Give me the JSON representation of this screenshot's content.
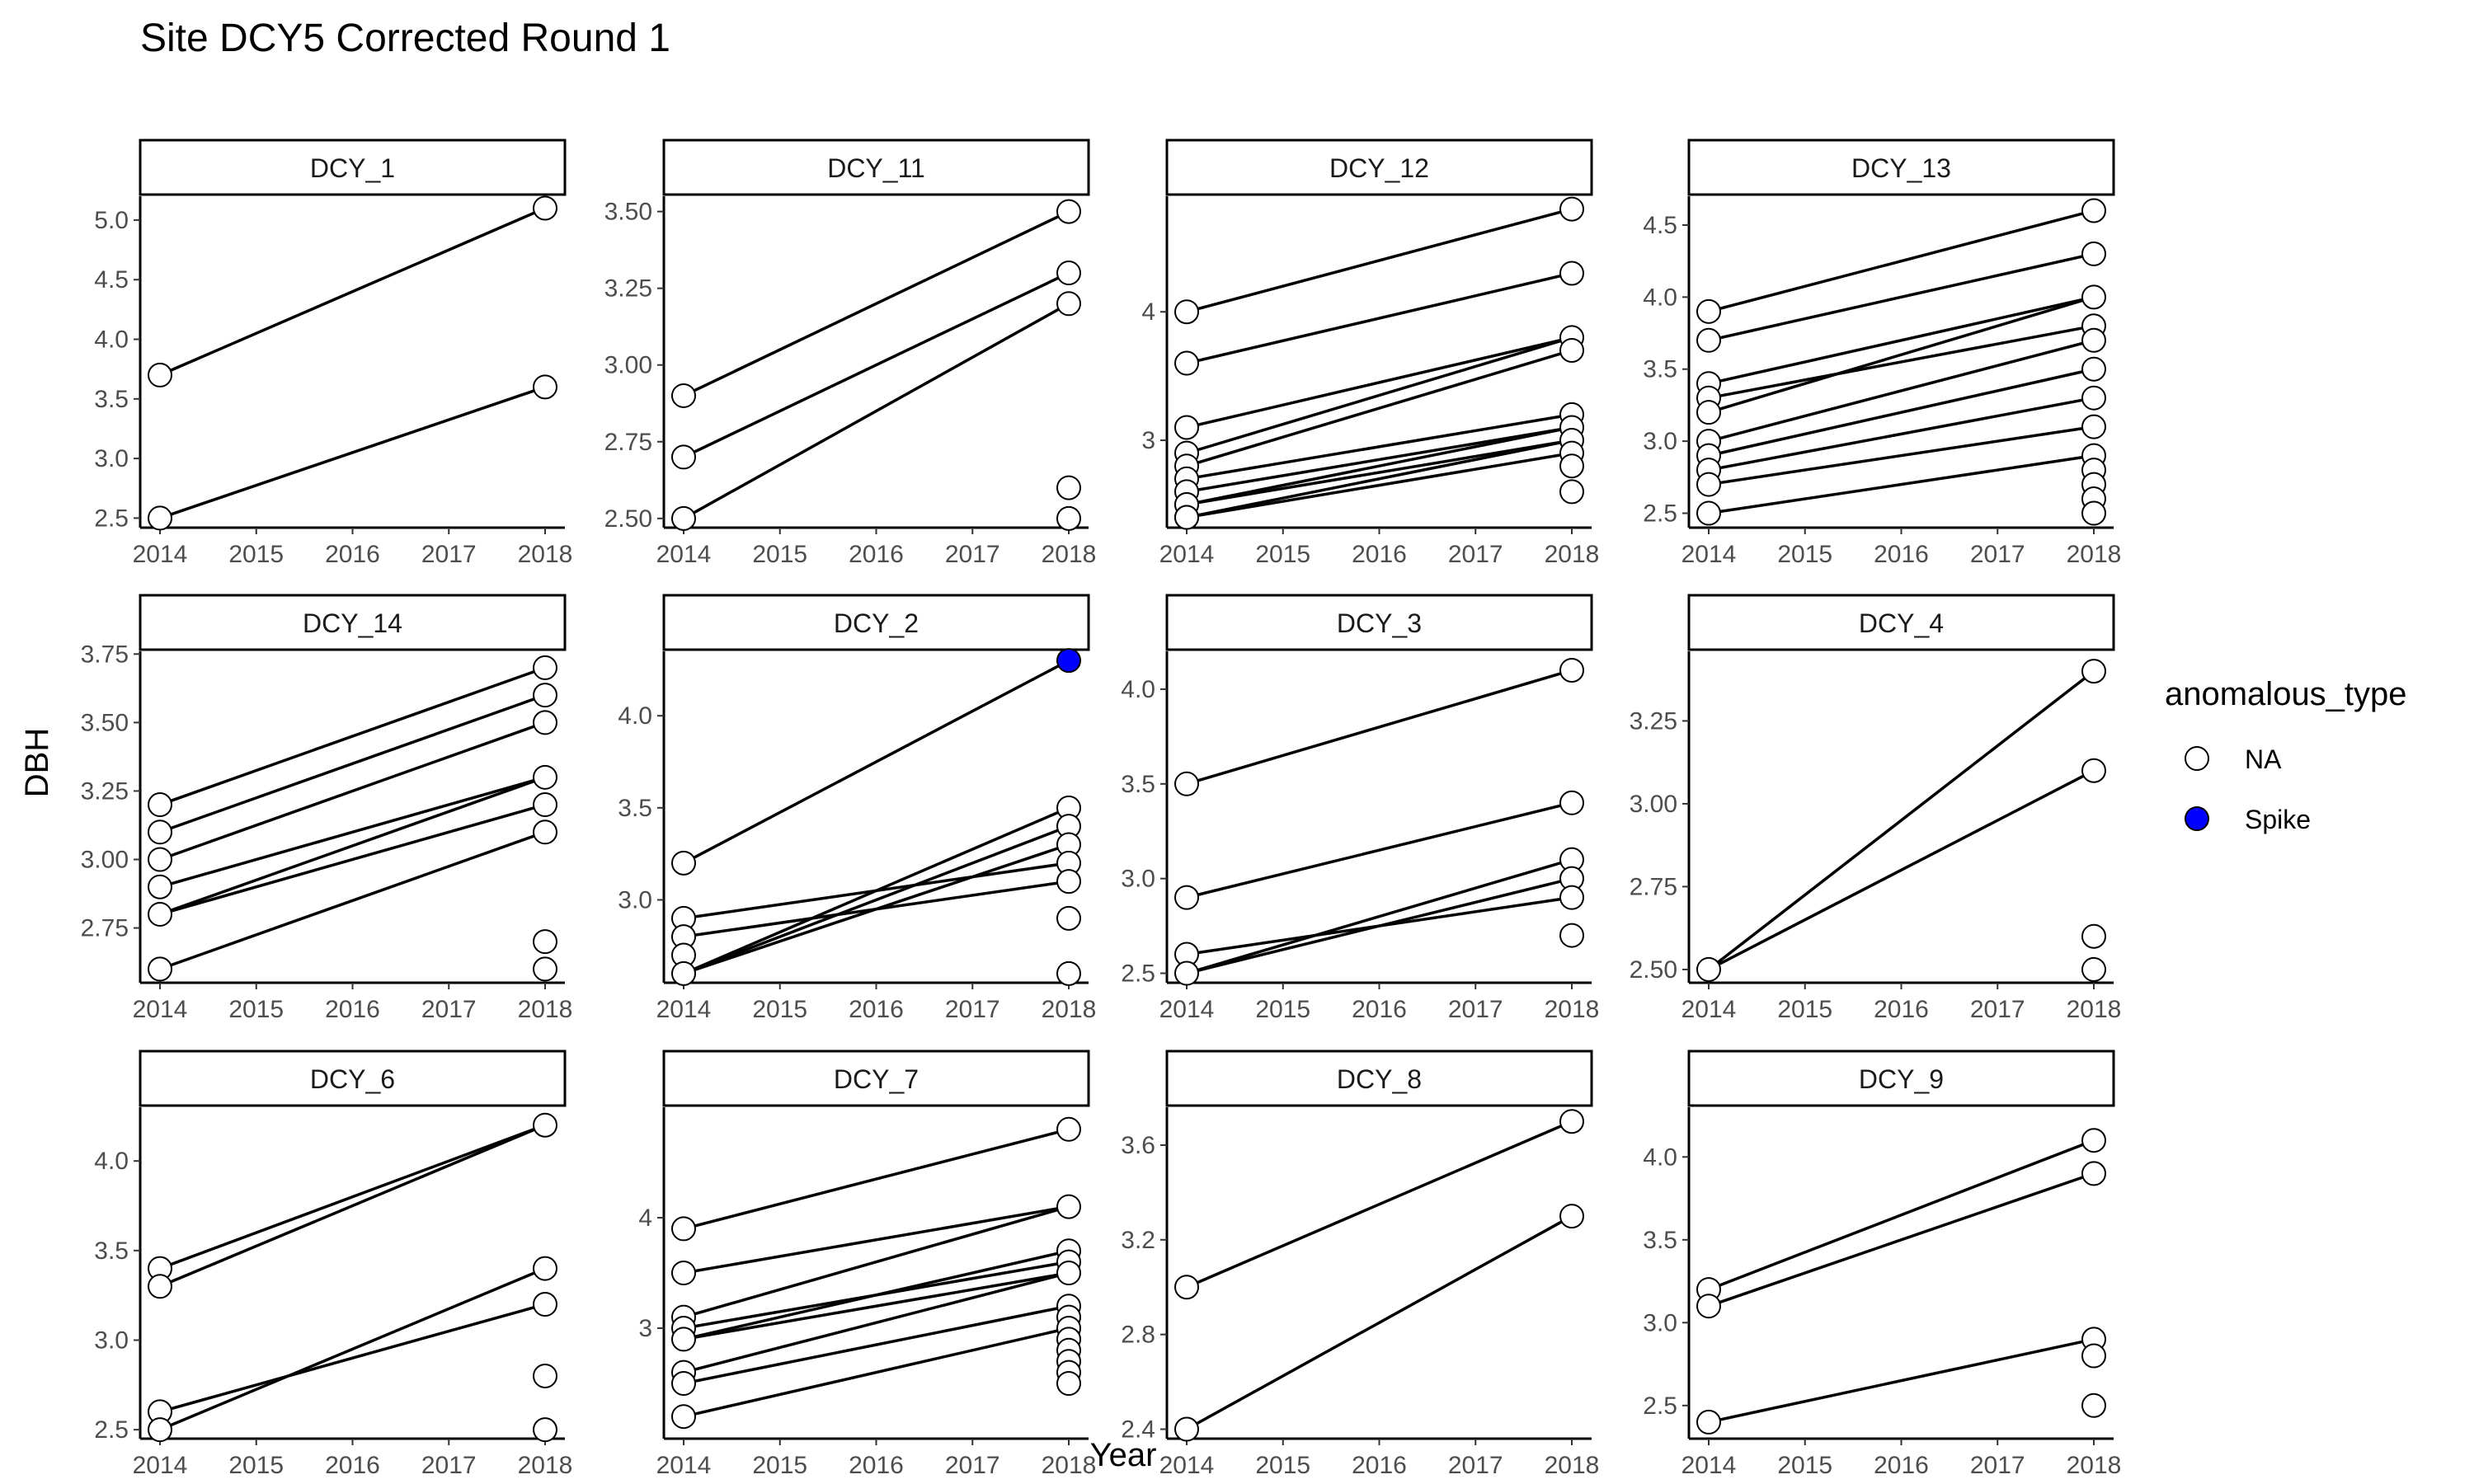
{
  "chart_data": {
    "type": "scatter",
    "title": "Site DCY5 Corrected Round 1",
    "xlabel": "Year",
    "ylabel": "DBH",
    "x_ticks": [
      2014,
      2015,
      2016,
      2017,
      2018
    ],
    "grid": false,
    "legend": {
      "title": "anomalous_type",
      "placement": "right",
      "entries": [
        {
          "label": "NA",
          "fill": "#ffffff"
        },
        {
          "label": "Spike",
          "fill": "#0000ff"
        }
      ]
    },
    "facets": [
      {
        "name": "DCY_1",
        "ylim": [
          2.42,
          5.2
        ],
        "y_ticks": [
          "2.5",
          "3.0",
          "3.5",
          "4.0",
          "4.5",
          "5.0"
        ],
        "lines": [
          [
            3.7,
            5.1
          ],
          [
            2.5,
            3.6
          ]
        ],
        "points_2014": [
          3.7,
          2.5
        ],
        "points_2018": [
          5.1,
          3.6
        ],
        "spike_2018": []
      },
      {
        "name": "DCY_11",
        "ylim": [
          2.47,
          3.55
        ],
        "y_ticks": [
          "2.50",
          "2.75",
          "3.00",
          "3.25",
          "3.50"
        ],
        "lines": [
          [
            2.9,
            3.5
          ],
          [
            2.7,
            3.3
          ],
          [
            2.5,
            3.2
          ]
        ],
        "points_2014": [
          2.9,
          2.7,
          2.5
        ],
        "points_2018": [
          3.5,
          3.3,
          3.2,
          2.6,
          2.5
        ],
        "spike_2018": []
      },
      {
        "name": "DCY_12",
        "ylim": [
          2.32,
          4.9
        ],
        "y_ticks": [
          "3",
          "4"
        ],
        "lines": [
          [
            4.0,
            4.8
          ],
          [
            3.6,
            4.3
          ],
          [
            3.1,
            3.8
          ],
          [
            2.9,
            3.8
          ],
          [
            2.8,
            3.7
          ],
          [
            2.7,
            3.2
          ],
          [
            2.6,
            3.1
          ],
          [
            2.5,
            3.1
          ],
          [
            2.5,
            3.0
          ],
          [
            2.4,
            3.0
          ],
          [
            2.4,
            2.9
          ]
        ],
        "points_2014": [
          4.0,
          3.6,
          3.1,
          2.9,
          2.8,
          2.7,
          2.6,
          2.5,
          2.5,
          2.4,
          2.4
        ],
        "points_2018": [
          4.8,
          4.3,
          3.8,
          3.7,
          3.2,
          3.1,
          3.0,
          2.9,
          2.8,
          2.6
        ],
        "spike_2018": []
      },
      {
        "name": "DCY_13",
        "ylim": [
          2.4,
          4.7
        ],
        "y_ticks": [
          "2.5",
          "3.0",
          "3.5",
          "4.0",
          "4.5"
        ],
        "lines": [
          [
            3.9,
            4.6
          ],
          [
            3.7,
            4.3
          ],
          [
            3.4,
            4.0
          ],
          [
            3.3,
            3.8
          ],
          [
            3.2,
            4.0
          ],
          [
            3.0,
            3.7
          ],
          [
            2.9,
            3.5
          ],
          [
            2.8,
            3.3
          ],
          [
            2.7,
            3.1
          ],
          [
            2.5,
            2.9
          ]
        ],
        "points_2014": [
          3.9,
          3.7,
          3.4,
          3.3,
          3.2,
          3.0,
          2.9,
          2.8,
          2.7,
          2.5
        ],
        "points_2018": [
          4.6,
          4.3,
          4.0,
          3.8,
          3.7,
          3.5,
          3.3,
          3.1,
          2.9,
          2.8,
          2.7,
          2.6,
          2.5
        ],
        "spike_2018": []
      },
      {
        "name": "DCY_14",
        "ylim": [
          2.55,
          3.76
        ],
        "y_ticks": [
          "2.75",
          "3.00",
          "3.25",
          "3.50",
          "3.75"
        ],
        "lines": [
          [
            3.2,
            3.7
          ],
          [
            3.1,
            3.6
          ],
          [
            3.0,
            3.5
          ],
          [
            2.9,
            3.3
          ],
          [
            2.8,
            3.3
          ],
          [
            2.8,
            3.2
          ],
          [
            2.6,
            3.1
          ]
        ],
        "points_2014": [
          3.2,
          3.1,
          3.0,
          2.9,
          2.8,
          2.6
        ],
        "points_2018": [
          3.7,
          3.6,
          3.5,
          3.3,
          3.2,
          3.1,
          2.7,
          2.6
        ],
        "spike_2018": []
      },
      {
        "name": "DCY_2",
        "ylim": [
          2.55,
          4.35
        ],
        "y_ticks": [
          "3.0",
          "3.5",
          "4.0"
        ],
        "lines": [
          [
            3.2,
            4.3
          ],
          [
            2.9,
            3.2
          ],
          [
            2.8,
            3.1
          ],
          [
            2.6,
            3.5
          ],
          [
            2.6,
            3.4
          ],
          [
            2.6,
            3.3
          ]
        ],
        "points_2014": [
          3.2,
          2.9,
          2.8,
          2.7,
          2.6
        ],
        "points_2018": [
          3.5,
          3.4,
          3.3,
          3.2,
          3.1,
          2.9,
          2.6
        ],
        "spike_2018": [
          4.3
        ]
      },
      {
        "name": "DCY_3",
        "ylim": [
          2.45,
          4.2
        ],
        "y_ticks": [
          "2.5",
          "3.0",
          "3.5",
          "4.0"
        ],
        "lines": [
          [
            3.5,
            4.1
          ],
          [
            2.9,
            3.4
          ],
          [
            2.6,
            2.9
          ],
          [
            2.5,
            3.1
          ],
          [
            2.5,
            3.0
          ]
        ],
        "points_2014": [
          3.5,
          2.9,
          2.6,
          2.5
        ],
        "points_2018": [
          4.1,
          3.4,
          3.1,
          3.0,
          2.9,
          2.7
        ],
        "spike_2018": []
      },
      {
        "name": "DCY_4",
        "ylim": [
          2.46,
          3.46
        ],
        "y_ticks": [
          "2.50",
          "2.75",
          "3.00",
          "3.25"
        ],
        "lines": [
          [
            2.5,
            3.4
          ],
          [
            2.5,
            3.1
          ]
        ],
        "points_2014": [
          2.5
        ],
        "points_2018": [
          3.4,
          3.1,
          2.6,
          2.5
        ],
        "spike_2018": []
      },
      {
        "name": "DCY_6",
        "ylim": [
          2.45,
          4.3
        ],
        "y_ticks": [
          "2.5",
          "3.0",
          "3.5",
          "4.0"
        ],
        "lines": [
          [
            3.4,
            4.2
          ],
          [
            3.3,
            4.2
          ],
          [
            2.6,
            3.2
          ],
          [
            2.5,
            3.4
          ]
        ],
        "points_2014": [
          3.4,
          3.3,
          2.6,
          2.5
        ],
        "points_2018": [
          4.2,
          3.4,
          3.2,
          2.8,
          2.5
        ],
        "spike_2018": []
      },
      {
        "name": "DCY_7",
        "ylim": [
          2.0,
          5.0
        ],
        "y_ticks": [
          "3",
          "4"
        ],
        "lines": [
          [
            3.9,
            4.8
          ],
          [
            3.5,
            4.1
          ],
          [
            3.1,
            4.1
          ],
          [
            3.0,
            3.6
          ],
          [
            2.9,
            3.5
          ],
          [
            2.9,
            3.7
          ],
          [
            2.6,
            3.5
          ],
          [
            2.5,
            3.2
          ],
          [
            2.2,
            3.0
          ]
        ],
        "points_2014": [
          3.9,
          3.5,
          3.1,
          3.0,
          2.9,
          2.6,
          2.5,
          2.2
        ],
        "points_2018": [
          4.8,
          4.1,
          3.7,
          3.6,
          3.5,
          3.2,
          3.1,
          3.0,
          2.9,
          2.8,
          2.7,
          2.6,
          2.5
        ],
        "spike_2018": []
      },
      {
        "name": "DCY_8",
        "ylim": [
          2.36,
          3.76
        ],
        "y_ticks": [
          "2.4",
          "2.8",
          "3.2",
          "3.6"
        ],
        "lines": [
          [
            3.0,
            3.7
          ],
          [
            2.4,
            3.3
          ]
        ],
        "points_2014": [
          3.0,
          2.4
        ],
        "points_2018": [
          3.7,
          3.3
        ],
        "spike_2018": []
      },
      {
        "name": "DCY_9",
        "ylim": [
          2.3,
          4.3
        ],
        "y_ticks": [
          "2.5",
          "3.0",
          "3.5",
          "4.0"
        ],
        "lines": [
          [
            3.2,
            4.1
          ],
          [
            3.1,
            3.9
          ],
          [
            2.4,
            2.9
          ]
        ],
        "points_2014": [
          3.2,
          3.1,
          2.4
        ],
        "points_2018": [
          4.1,
          3.9,
          2.9,
          2.8,
          2.5
        ],
        "spike_2018": []
      }
    ]
  }
}
